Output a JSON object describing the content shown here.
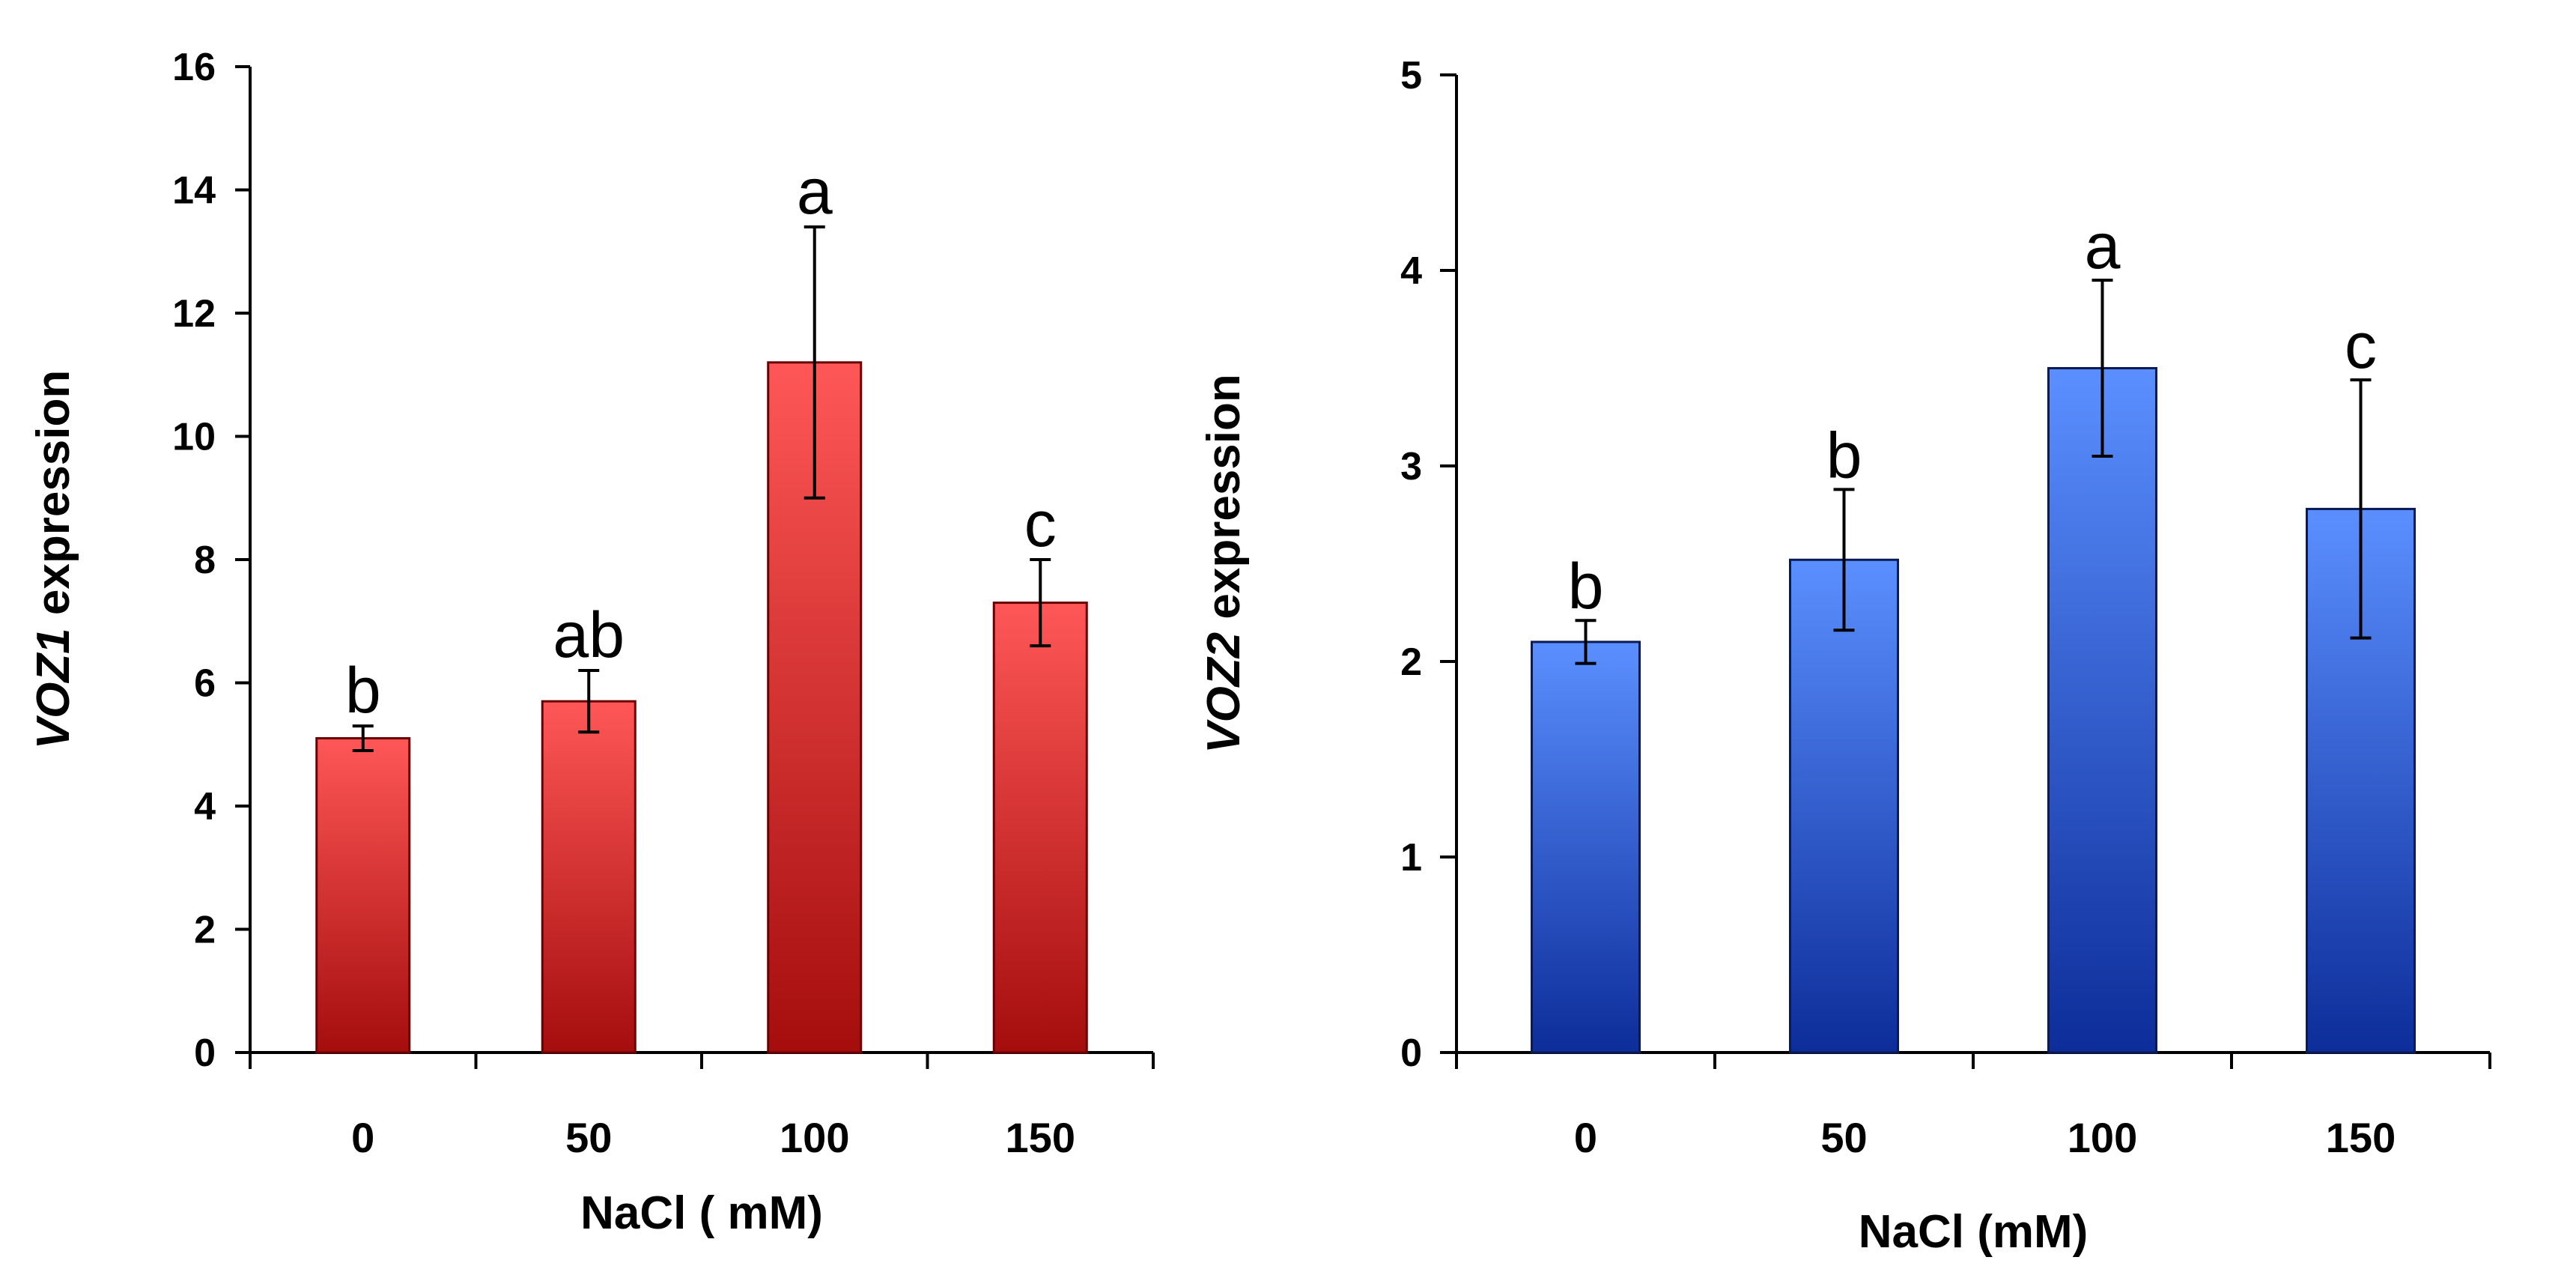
{
  "chart_data": [
    {
      "type": "bar",
      "categories": [
        "0",
        "50",
        "100",
        "150"
      ],
      "values": [
        5.1,
        5.7,
        11.2,
        7.3
      ],
      "errors": [
        0.2,
        0.5,
        2.2,
        0.7
      ],
      "significance": [
        "b",
        "ab",
        "a",
        "c"
      ],
      "xlabel": "NaCl ( mM)",
      "ylabel_italic": "VOZ1",
      "ylabel_rest": " expression",
      "ylim": [
        0,
        16
      ],
      "yticks": [
        "0",
        "2",
        "4",
        "6",
        "8",
        "10",
        "12",
        "14",
        "16"
      ],
      "grid": false,
      "legend": "none",
      "colors": {
        "top": "#ff5757",
        "bottom": "#a50d0d",
        "edge": "#6a0000"
      }
    },
    {
      "type": "bar",
      "categories": [
        "0",
        "50",
        "100",
        "150"
      ],
      "values": [
        2.1,
        2.52,
        3.5,
        2.78
      ],
      "errors": [
        0.11,
        0.36,
        0.45,
        0.66
      ],
      "significance": [
        "b",
        "b",
        "a",
        "c"
      ],
      "xlabel": "NaCl (mM)",
      "ylabel_italic": "VOZ2",
      "ylabel_rest": " expression",
      "ylim": [
        0,
        5
      ],
      "yticks": [
        "0",
        "1",
        "2",
        "3",
        "4",
        "5"
      ],
      "grid": false,
      "legend": "none",
      "colors": {
        "top": "#5b8fff",
        "bottom": "#0c2d9a",
        "edge": "#0a1a55"
      }
    }
  ]
}
